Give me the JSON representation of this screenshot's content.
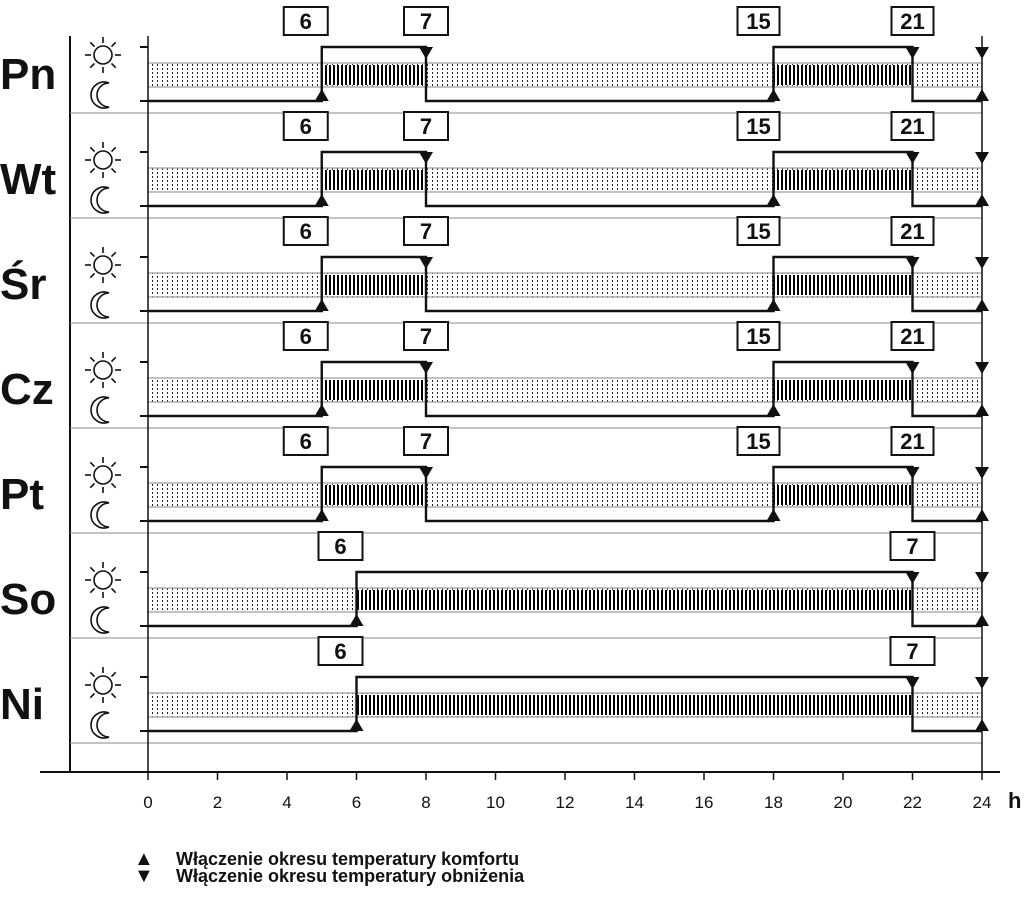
{
  "days": [
    {
      "label": "Pn",
      "switches": [
        {
          "hour": 5,
          "time_label": "6",
          "kind": "comfort"
        },
        {
          "hour": 8,
          "time_label": "7",
          "kind": "setback"
        },
        {
          "hour": 18,
          "time_label": "15",
          "kind": "comfort"
        },
        {
          "hour": 22,
          "time_label": "21",
          "kind": "setback"
        }
      ]
    },
    {
      "label": "Wt",
      "switches": [
        {
          "hour": 5,
          "time_label": "6",
          "kind": "comfort"
        },
        {
          "hour": 8,
          "time_label": "7",
          "kind": "setback"
        },
        {
          "hour": 18,
          "time_label": "15",
          "kind": "comfort"
        },
        {
          "hour": 22,
          "time_label": "21",
          "kind": "setback"
        }
      ]
    },
    {
      "label": "Śr",
      "switches": [
        {
          "hour": 5,
          "time_label": "6",
          "kind": "comfort"
        },
        {
          "hour": 8,
          "time_label": "7",
          "kind": "setback"
        },
        {
          "hour": 18,
          "time_label": "15",
          "kind": "comfort"
        },
        {
          "hour": 22,
          "time_label": "21",
          "kind": "setback"
        }
      ]
    },
    {
      "label": "Cz",
      "switches": [
        {
          "hour": 5,
          "time_label": "6",
          "kind": "comfort"
        },
        {
          "hour": 8,
          "time_label": "7",
          "kind": "setback"
        },
        {
          "hour": 18,
          "time_label": "15",
          "kind": "comfort"
        },
        {
          "hour": 22,
          "time_label": "21",
          "kind": "setback"
        }
      ]
    },
    {
      "label": "Pt",
      "switches": [
        {
          "hour": 5,
          "time_label": "6",
          "kind": "comfort"
        },
        {
          "hour": 8,
          "time_label": "7",
          "kind": "setback"
        },
        {
          "hour": 18,
          "time_label": "15",
          "kind": "comfort"
        },
        {
          "hour": 22,
          "time_label": "21",
          "kind": "setback"
        }
      ]
    },
    {
      "label": "So",
      "switches": [
        {
          "hour": 6,
          "time_label": "6",
          "kind": "comfort"
        },
        {
          "hour": 22,
          "time_label": "7",
          "kind": "setback"
        }
      ]
    },
    {
      "label": "Ni",
      "switches": [
        {
          "hour": 6,
          "time_label": "6",
          "kind": "comfort"
        },
        {
          "hour": 22,
          "time_label": "7",
          "kind": "setback"
        }
      ]
    }
  ],
  "axis": {
    "min": 0,
    "max": 24,
    "ticks": [
      "0",
      "2",
      "4",
      "6",
      "8",
      "10",
      "12",
      "14",
      "16",
      "18",
      "20",
      "22",
      "24"
    ],
    "unit": "h"
  },
  "legend": {
    "comfort": "Włączenie okresu temperatury komfortu",
    "setback": "Włączenie okresu temperatury obniżenia"
  },
  "icons": {
    "high_level": "sun-icon",
    "low_level": "moon-icon"
  }
}
